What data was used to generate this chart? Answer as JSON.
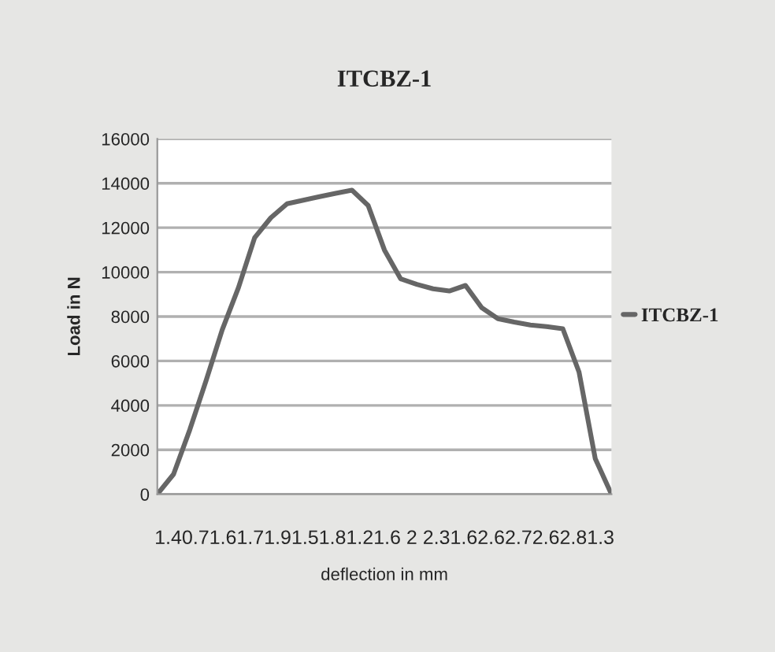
{
  "chart_data": {
    "type": "line",
    "title": "ITCBZ-1",
    "xlabel": "deflection in mm",
    "ylabel": "Load in N",
    "categories": [
      null,
      null,
      null,
      null,
      null,
      null,
      null,
      null,
      null,
      null,
      null,
      null,
      null,
      null,
      null,
      null,
      null,
      null,
      null,
      null,
      null,
      null,
      null,
      null,
      null,
      null,
      null,
      null,
      null
    ],
    "series": [
      {
        "name": "ITCBZ-1",
        "color": "#666666",
        "values": [
          0,
          900,
          2900,
          5100,
          7400,
          9300,
          11550,
          12450,
          13080,
          13240,
          13400,
          13550,
          13690,
          13000,
          11000,
          9700,
          9450,
          9250,
          9150,
          9400,
          8400,
          7900,
          7750,
          7620,
          7550,
          7450,
          5500,
          1600,
          0
        ]
      }
    ],
    "annotations": [
      "1.40.71.61.71.91.51.81.21.6 2 2.31.62.62.72.62.81.3"
    ],
    "ylim": [
      0,
      16000
    ],
    "yticks": [
      0,
      2000,
      4000,
      6000,
      8000,
      10000,
      12000,
      14000,
      16000
    ],
    "grid": "y",
    "legend": "right",
    "marker": "none",
    "line_style": "solid"
  }
}
